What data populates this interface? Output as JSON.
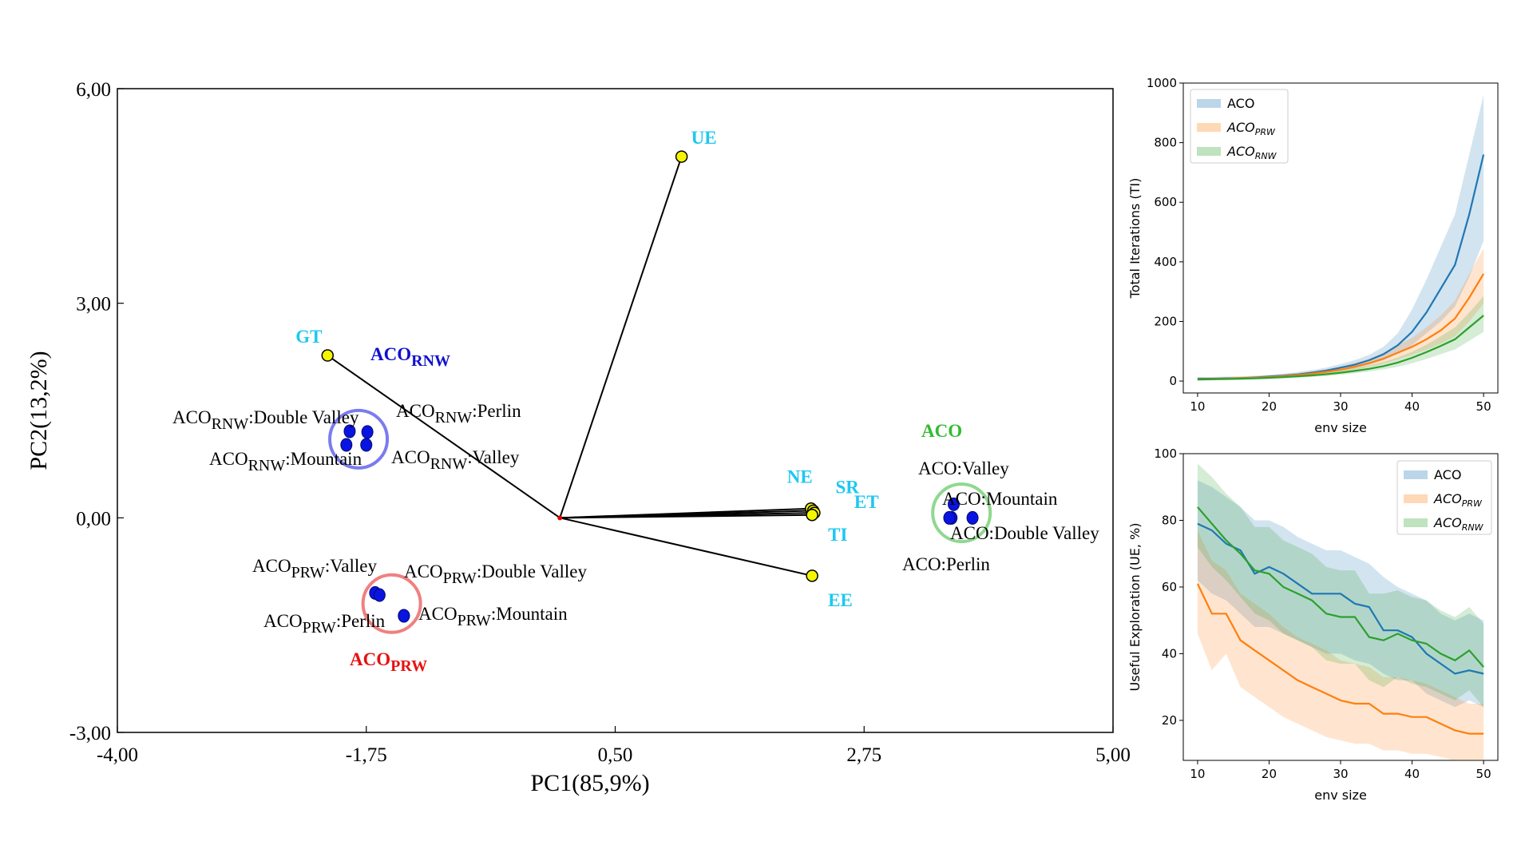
{
  "chart_data": [
    {
      "type": "scatter",
      "title": "",
      "xlabel": "PC1(85,9%)",
      "ylabel": "PC2(13,2%)",
      "xlim": [
        -4.0,
        5.0
      ],
      "ylim": [
        -3.0,
        6.0
      ],
      "xticks": [
        "-4,00",
        "-1,75",
        "0,50",
        "2,75",
        "5,00"
      ],
      "yticks": [
        "-3,00",
        "0,00",
        "3,00",
        "6,00"
      ],
      "loadings": [
        {
          "name": "UE",
          "x": 1.1,
          "y": 5.05
        },
        {
          "name": "GT",
          "x": -2.1,
          "y": 2.27
        },
        {
          "name": "NE",
          "x": 2.27,
          "y": 0.13
        },
        {
          "name": "SR",
          "x": 2.29,
          "y": 0.1
        },
        {
          "name": "ET",
          "x": 2.3,
          "y": 0.07
        },
        {
          "name": "TI",
          "x": 2.28,
          "y": 0.04
        },
        {
          "name": "EE",
          "x": 2.28,
          "y": -0.81
        }
      ],
      "scores": [
        {
          "label": "ACO:Valley",
          "x": 3.56,
          "y": 0.19
        },
        {
          "label": "ACO:Mountain",
          "x": 3.54,
          "y": 0.0
        },
        {
          "label": "ACO:Double Valley",
          "x": 3.73,
          "y": 0.0
        },
        {
          "label": "ACO:Perlin",
          "x": 3.52,
          "y": 0.0
        },
        {
          "label": "ACORNW:Double Valley",
          "x": -1.9,
          "y": 1.21
        },
        {
          "label": "ACORNW:Perlin",
          "x": -1.74,
          "y": 1.2
        },
        {
          "label": "ACORNW:Mountain",
          "x": -1.93,
          "y": 1.02
        },
        {
          "label": "ACORNW:Valley",
          "x": -1.75,
          "y": 1.02
        },
        {
          "label": "ACOPRW:Valley",
          "x": -1.67,
          "y": -1.05
        },
        {
          "label": "ACOPRW:Double Valley",
          "x": -1.63,
          "y": -1.08
        },
        {
          "label": "ACOPRW:Mountain",
          "x": -1.41,
          "y": -1.37
        },
        {
          "label": "ACOPRW:Perlin",
          "x": -1.41,
          "y": -1.37
        }
      ],
      "groups": [
        {
          "name": "ACO",
          "cx": 3.63,
          "cy": 0.07,
          "color": "#33bb33",
          "ring": "#90d890"
        },
        {
          "name": "ACORNW",
          "cx": -1.82,
          "cy": 1.1,
          "color": "#1010d0",
          "ring": "#7b7bf0"
        },
        {
          "name": "ACOPRW",
          "cx": -1.52,
          "cy": -1.2,
          "color": "#e81010",
          "ring": "#f08080"
        }
      ],
      "annotations": {
        "aco_valley": "ACO:Valley",
        "aco_mountain": "ACO:Mountain",
        "aco_double_valley": "ACO:Double Valley",
        "aco_perlin": "ACO:Perlin",
        "rnw_double_valley_a": "ACO",
        "rnw_double_valley_b": "RNW",
        "rnw_double_valley_c": ":Double Valley",
        "rnw_perlin_a": "ACO",
        "rnw_perlin_b": "RNW",
        "rnw_perlin_c": ":Perlin",
        "rnw_mountain_a": "ACO",
        "rnw_mountain_b": "RNW",
        "rnw_mountain_c": ":Mountain",
        "rnw_valley_a": "ACO",
        "rnw_valley_b": "RNW",
        "rnw_valley_c": ":Valley",
        "prw_valley_a": "ACO",
        "prw_valley_b": "PRW",
        "prw_valley_c": ":Valley",
        "prw_double_valley_a": "ACO",
        "prw_double_valley_b": "PRW",
        "prw_double_valley_c": ":Double Valley",
        "prw_perlin_a": "ACO",
        "prw_perlin_b": "PRW",
        "prw_perlin_c": ":Perlin",
        "prw_mountain_a": "ACO",
        "prw_mountain_b": "PRW",
        "prw_mountain_c": ":Mountain",
        "group_aco": "ACO",
        "group_rnw_a": "ACO",
        "group_rnw_b": "RNW",
        "group_prw_a": "ACO",
        "group_prw_b": "PRW"
      }
    },
    {
      "type": "line",
      "title": "",
      "xlabel": "env size",
      "ylabel": "Total Iterations (TI)",
      "xlim": [
        8,
        52
      ],
      "ylim": [
        -40,
        1000
      ],
      "xticks": [
        10,
        20,
        30,
        40,
        50
      ],
      "yticks": [
        0,
        200,
        400,
        600,
        800,
        1000
      ],
      "x": [
        10,
        12,
        14,
        16,
        18,
        20,
        22,
        24,
        26,
        28,
        30,
        32,
        34,
        36,
        38,
        40,
        42,
        44,
        46,
        48,
        50
      ],
      "legend_position": "top-left",
      "series": [
        {
          "name": "ACO",
          "sub": "",
          "color": "#1f77b4",
          "values": [
            8,
            8,
            9,
            10,
            12,
            15,
            18,
            22,
            28,
            35,
            45,
            55,
            70,
            90,
            120,
            165,
            230,
            310,
            390,
            560,
            760
          ],
          "lower": [
            3,
            4,
            5,
            6,
            8,
            10,
            13,
            16,
            21,
            27,
            35,
            43,
            55,
            70,
            92,
            120,
            160,
            200,
            250,
            350,
            470
          ],
          "upper": [
            14,
            14,
            15,
            16,
            18,
            21,
            25,
            30,
            37,
            45,
            57,
            70,
            88,
            115,
            160,
            240,
            340,
            450,
            560,
            760,
            960
          ]
        },
        {
          "name": "ACO",
          "sub": "PRW",
          "color": "#ff7f0e",
          "values": [
            6,
            7,
            8,
            10,
            11,
            13,
            16,
            20,
            25,
            31,
            38,
            48,
            60,
            75,
            95,
            115,
            140,
            170,
            210,
            280,
            360
          ],
          "lower": [
            2,
            3,
            4,
            5,
            6,
            8,
            11,
            14,
            18,
            23,
            29,
            37,
            47,
            58,
            72,
            88,
            105,
            125,
            150,
            200,
            260
          ],
          "upper": [
            11,
            12,
            13,
            14,
            16,
            19,
            23,
            27,
            33,
            40,
            49,
            61,
            75,
            95,
            120,
            145,
            180,
            220,
            270,
            360,
            445
          ]
        },
        {
          "name": "ACO",
          "sub": "RNW",
          "color": "#2ca02c",
          "values": [
            5,
            6,
            7,
            8,
            9,
            11,
            13,
            16,
            19,
            23,
            28,
            34,
            41,
            50,
            62,
            78,
            97,
            118,
            140,
            180,
            220
          ],
          "lower": [
            1,
            2,
            3,
            4,
            5,
            7,
            9,
            11,
            14,
            17,
            21,
            26,
            32,
            39,
            48,
            60,
            74,
            90,
            106,
            135,
            165
          ],
          "upper": [
            9,
            10,
            11,
            12,
            14,
            16,
            19,
            22,
            26,
            31,
            37,
            44,
            53,
            64,
            79,
            98,
            122,
            150,
            180,
            230,
            285
          ]
        }
      ]
    },
    {
      "type": "line",
      "title": "",
      "xlabel": "env size",
      "ylabel": "Useful Exploration (UE, %)",
      "xlim": [
        8,
        52
      ],
      "ylim": [
        8,
        100
      ],
      "xticks": [
        10,
        20,
        30,
        40,
        50
      ],
      "yticks": [
        20,
        40,
        60,
        80,
        100
      ],
      "x": [
        10,
        12,
        14,
        16,
        18,
        20,
        22,
        24,
        26,
        28,
        30,
        32,
        34,
        36,
        38,
        40,
        42,
        44,
        46,
        48,
        50
      ],
      "legend_position": "top-right",
      "series": [
        {
          "name": "ACO",
          "sub": "",
          "color": "#1f77b4",
          "values": [
            79,
            77,
            73,
            71,
            64,
            66,
            64,
            61,
            58,
            58,
            58,
            55,
            54,
            47,
            47,
            45,
            40,
            37,
            34,
            35,
            34
          ],
          "lower": [
            62,
            58,
            56,
            52,
            48,
            48,
            46,
            44,
            42,
            40,
            40,
            38,
            37,
            34,
            32,
            32,
            28,
            26,
            24,
            26,
            24
          ],
          "upper": [
            92,
            90,
            87,
            84,
            80,
            80,
            78,
            75,
            73,
            71,
            71,
            69,
            67,
            63,
            60,
            58,
            56,
            52,
            50,
            52,
            50
          ]
        },
        {
          "name": "ACO",
          "sub": "PRW",
          "color": "#ff7f0e",
          "values": [
            61,
            52,
            52,
            44,
            41,
            38,
            35,
            32,
            30,
            28,
            26,
            25,
            25,
            22,
            22,
            21,
            21,
            19,
            17,
            16,
            16
          ],
          "lower": [
            46,
            35,
            40,
            30,
            27,
            24,
            21,
            19,
            17,
            15,
            14,
            13,
            13,
            11,
            11,
            10,
            10,
            9,
            8,
            8,
            8
          ],
          "upper": [
            77,
            68,
            65,
            58,
            55,
            52,
            48,
            45,
            43,
            41,
            38,
            37,
            36,
            33,
            33,
            32,
            31,
            29,
            27,
            25,
            25
          ]
        },
        {
          "name": "ACO",
          "sub": "RNW",
          "color": "#2ca02c",
          "values": [
            84,
            79,
            74,
            70,
            65,
            64,
            60,
            58,
            56,
            52,
            51,
            51,
            45,
            44,
            46,
            44,
            43,
            40,
            38,
            41,
            36
          ],
          "lower": [
            72,
            66,
            62,
            57,
            52,
            50,
            46,
            44,
            42,
            38,
            37,
            37,
            32,
            30,
            33,
            31,
            30,
            28,
            26,
            29,
            24
          ],
          "upper": [
            97,
            93,
            88,
            84,
            78,
            78,
            74,
            72,
            70,
            66,
            65,
            65,
            58,
            58,
            59,
            57,
            56,
            53,
            51,
            54,
            49
          ]
        }
      ]
    }
  ]
}
